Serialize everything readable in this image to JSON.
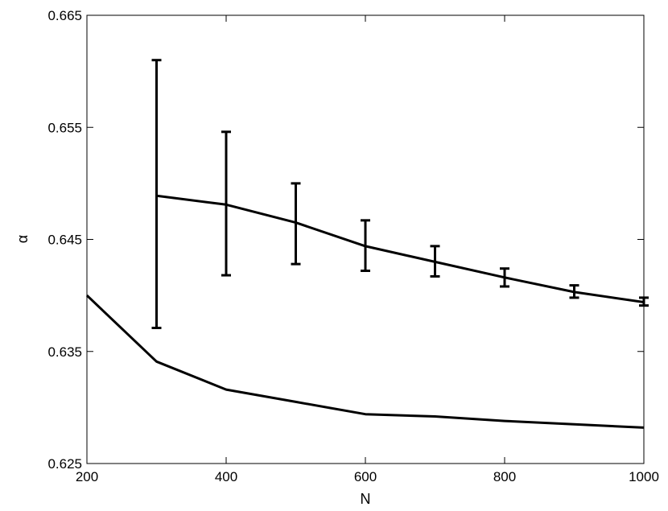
{
  "chart_data": {
    "type": "line",
    "xlabel": "N",
    "ylabel": "α",
    "xlim": [
      200,
      1000
    ],
    "ylim": [
      0.625,
      0.665
    ],
    "xticks": [
      200,
      400,
      600,
      800,
      1000
    ],
    "yticks": [
      0.625,
      0.635,
      0.645,
      0.655,
      0.665
    ],
    "xtick_labels": [
      "200",
      "400",
      "600",
      "800",
      "1000"
    ],
    "ytick_labels": [
      "0.625",
      "0.635",
      "0.645",
      "0.655",
      "0.665"
    ],
    "grid": false,
    "legend": false,
    "series": [
      {
        "color": "#000000",
        "x": [
          300,
          400,
          500,
          600,
          700,
          800,
          900,
          1000
        ],
        "y": [
          0.6489,
          0.6481,
          0.6465,
          0.6444,
          0.643,
          0.6416,
          0.6403,
          0.6394
        ],
        "error_low": [
          0.6371,
          0.6418,
          0.6428,
          0.6422,
          0.6417,
          0.6408,
          0.6398,
          0.6391
        ],
        "error_high": [
          0.661,
          0.6546,
          0.65,
          0.6467,
          0.6444,
          0.6424,
          0.6409,
          0.6398
        ]
      },
      {
        "color": "#000000",
        "x": [
          200,
          300,
          400,
          500,
          600,
          700,
          800,
          900,
          1000
        ],
        "y": [
          0.64,
          0.6341,
          0.6316,
          0.6305,
          0.6294,
          0.6292,
          0.6288,
          0.6285,
          0.6282
        ]
      }
    ]
  }
}
